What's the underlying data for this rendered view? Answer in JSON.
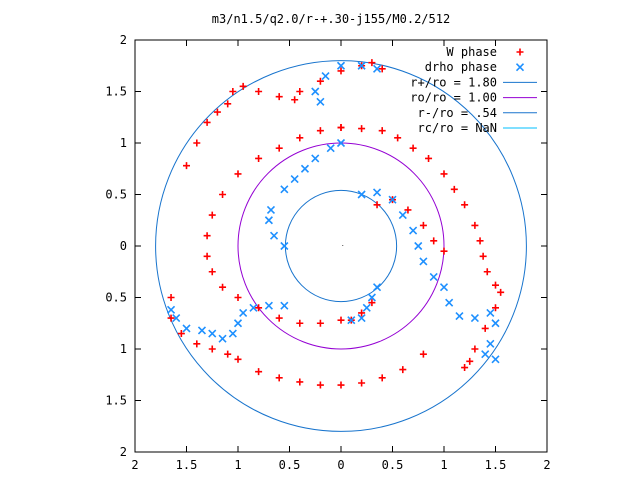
{
  "chart_data": {
    "type": "scatter",
    "title": "m3/n1.5/q2.0/r-+.30-j155/M0.2/512",
    "xlabel": "",
    "ylabel": "",
    "xlim": [
      -2,
      2
    ],
    "ylim": [
      -2,
      2
    ],
    "x_tick_values": [
      -2,
      -1.5,
      -1,
      -0.5,
      0,
      0.5,
      1,
      1.5,
      2
    ],
    "x_tick_labels": [
      "2",
      "1.5",
      "1",
      "0.5",
      "0",
      "0.5",
      "1",
      "1.5",
      "2"
    ],
    "y_tick_values": [
      2,
      1.5,
      1,
      0.5,
      0,
      -0.5,
      -1,
      -1.5,
      -2
    ],
    "y_tick_labels": [
      "2",
      "1.5",
      "1",
      "0.5",
      "0",
      "0.5",
      "1",
      "1.5",
      "2"
    ],
    "grid": false,
    "legend_position": "top-right",
    "circles": [
      {
        "name": "r+/ro = 1.80",
        "radius": 1.8,
        "color": "#1874cd"
      },
      {
        "name": "ro/ro = 1.00",
        "radius": 1.0,
        "color": "#9400d3"
      },
      {
        "name": "r-/ro = .54",
        "radius": 0.54,
        "color": "#1874cd"
      },
      {
        "name": "rc/ro = NaN",
        "radius": null,
        "color": "#00bfff"
      }
    ],
    "series": [
      {
        "name": "W phase",
        "marker": "+",
        "color": "#ff0000",
        "points": [
          [
            0.0,
            1.15
          ],
          [
            0.2,
            1.14
          ],
          [
            0.4,
            1.12
          ],
          [
            0.55,
            1.05
          ],
          [
            0.7,
            0.95
          ],
          [
            0.85,
            0.85
          ],
          [
            1.0,
            0.7
          ],
          [
            1.1,
            0.55
          ],
          [
            1.2,
            0.4
          ],
          [
            1.3,
            0.2
          ],
          [
            1.35,
            0.05
          ],
          [
            1.38,
            -0.1
          ],
          [
            1.42,
            -0.25
          ],
          [
            1.5,
            -0.38
          ],
          [
            1.55,
            -0.45
          ],
          [
            1.5,
            -0.6
          ],
          [
            1.4,
            -0.8
          ],
          [
            1.3,
            -1.0
          ],
          [
            1.25,
            -1.12
          ],
          [
            1.2,
            -1.18
          ],
          [
            0.0,
            1.15
          ],
          [
            -0.2,
            1.12
          ],
          [
            -0.4,
            1.05
          ],
          [
            -0.6,
            0.95
          ],
          [
            -0.8,
            0.85
          ],
          [
            -1.0,
            0.7
          ],
          [
            -1.15,
            0.5
          ],
          [
            -1.25,
            0.3
          ],
          [
            -1.3,
            0.1
          ],
          [
            -1.3,
            -0.1
          ],
          [
            -1.25,
            -0.25
          ],
          [
            -1.15,
            -0.4
          ],
          [
            -1.0,
            -0.5
          ],
          [
            -0.8,
            -0.6
          ],
          [
            -0.6,
            -0.7
          ],
          [
            -0.4,
            -0.75
          ],
          [
            -0.2,
            -0.75
          ],
          [
            0.0,
            -0.72
          ],
          [
            0.1,
            -0.72
          ],
          [
            0.2,
            -0.65
          ],
          [
            0.3,
            -0.55
          ],
          [
            -0.4,
            1.5
          ],
          [
            -0.45,
            1.42
          ],
          [
            -0.6,
            1.45
          ],
          [
            -0.8,
            1.5
          ],
          [
            -0.95,
            1.55
          ],
          [
            -1.05,
            1.5
          ],
          [
            -1.1,
            1.38
          ],
          [
            -1.2,
            1.3
          ],
          [
            -1.3,
            1.2
          ],
          [
            -1.4,
            1.0
          ],
          [
            -1.5,
            0.78
          ],
          [
            -1.65,
            -0.5
          ],
          [
            -1.65,
            -0.7
          ],
          [
            -1.55,
            -0.85
          ],
          [
            -1.4,
            -0.95
          ],
          [
            -1.25,
            -1.0
          ],
          [
            -1.1,
            -1.05
          ],
          [
            -1.0,
            -1.1
          ],
          [
            -0.8,
            -1.22
          ],
          [
            -0.6,
            -1.28
          ],
          [
            -0.4,
            -1.32
          ],
          [
            -0.2,
            -1.35
          ],
          [
            0.0,
            -1.35
          ],
          [
            0.2,
            -1.33
          ],
          [
            0.4,
            -1.28
          ],
          [
            0.6,
            -1.2
          ],
          [
            0.8,
            -1.05
          ],
          [
            -0.2,
            1.6
          ],
          [
            0.0,
            1.7
          ],
          [
            0.2,
            1.75
          ],
          [
            0.3,
            1.78
          ],
          [
            0.4,
            1.72
          ],
          [
            0.35,
            0.4
          ],
          [
            0.5,
            0.45
          ],
          [
            0.65,
            0.35
          ],
          [
            0.8,
            0.2
          ],
          [
            0.9,
            0.05
          ],
          [
            1.0,
            -0.05
          ]
        ]
      },
      {
        "name": "drho phase",
        "marker": "x",
        "color": "#1e90ff",
        "points": [
          [
            -0.55,
            0.0
          ],
          [
            -0.65,
            0.1
          ],
          [
            -0.7,
            0.25
          ],
          [
            -0.68,
            0.35
          ],
          [
            -0.55,
            0.55
          ],
          [
            -0.45,
            0.65
          ],
          [
            -0.35,
            0.75
          ],
          [
            -0.25,
            0.85
          ],
          [
            -0.1,
            0.95
          ],
          [
            0.0,
            1.0
          ],
          [
            -0.2,
            1.4
          ],
          [
            -0.25,
            1.5
          ],
          [
            -0.15,
            1.65
          ],
          [
            0.0,
            1.75
          ],
          [
            0.2,
            1.75
          ],
          [
            0.35,
            1.72
          ],
          [
            0.2,
            0.5
          ],
          [
            0.35,
            0.52
          ],
          [
            0.5,
            0.45
          ],
          [
            0.6,
            0.3
          ],
          [
            0.7,
            0.15
          ],
          [
            0.75,
            0.0
          ],
          [
            0.8,
            -0.15
          ],
          [
            0.9,
            -0.3
          ],
          [
            1.0,
            -0.4
          ],
          [
            1.05,
            -0.55
          ],
          [
            1.15,
            -0.68
          ],
          [
            1.3,
            -0.7
          ],
          [
            1.45,
            -0.65
          ],
          [
            1.5,
            -0.75
          ],
          [
            1.45,
            -0.95
          ],
          [
            1.4,
            -1.05
          ],
          [
            1.5,
            -1.1
          ],
          [
            -0.55,
            -0.58
          ],
          [
            -0.7,
            -0.58
          ],
          [
            -0.85,
            -0.6
          ],
          [
            -0.95,
            -0.65
          ],
          [
            -1.0,
            -0.75
          ],
          [
            -1.05,
            -0.85
          ],
          [
            -1.15,
            -0.9
          ],
          [
            -1.25,
            -0.85
          ],
          [
            -1.35,
            -0.82
          ],
          [
            -1.5,
            -0.8
          ],
          [
            -1.6,
            -0.7
          ],
          [
            -1.65,
            -0.62
          ],
          [
            0.1,
            -0.72
          ],
          [
            0.2,
            -0.7
          ],
          [
            0.25,
            -0.6
          ],
          [
            0.3,
            -0.5
          ],
          [
            0.35,
            -0.4
          ]
        ]
      }
    ]
  }
}
